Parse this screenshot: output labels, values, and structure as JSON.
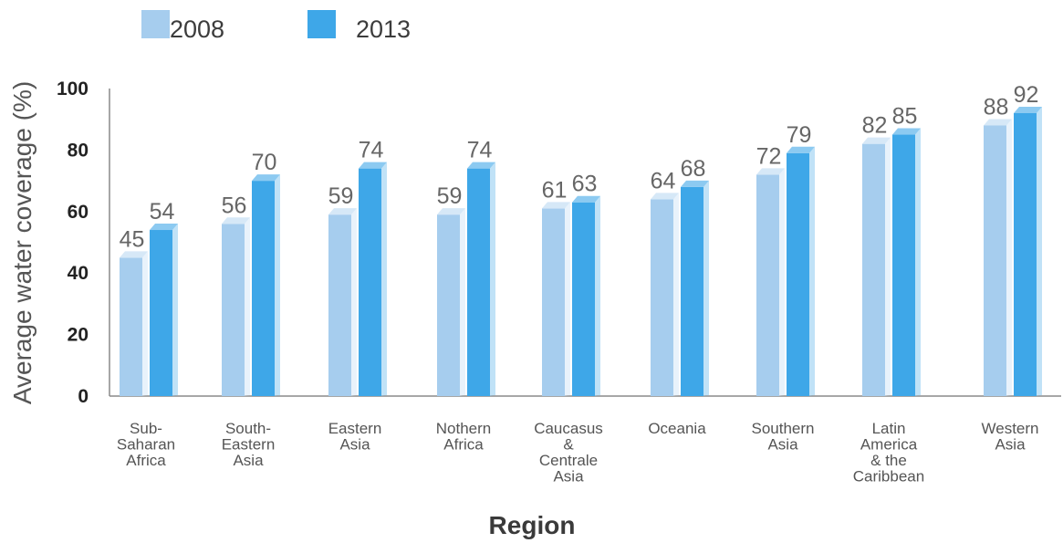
{
  "chart_data": {
    "type": "bar",
    "title": "",
    "xlabel": "Region",
    "ylabel": "Average water coverage (%)",
    "ylim": [
      0,
      100
    ],
    "yticks": [
      0,
      20,
      40,
      60,
      80,
      100
    ],
    "grid": false,
    "legend_position": "top-left",
    "categories": [
      "Sub-\nSaharan\nAfrica",
      "South-\nEastern\nAsia",
      "Eastern\nAsia",
      "Nothern\nAfrica",
      "Caucasus\n&\nCentrale\nAsia",
      "Oceania",
      "Southern\nAsia",
      "Latin\nAmerica\n& the\nCaribbean",
      "Western\nAsia"
    ],
    "series": [
      {
        "name": "2008",
        "color": "#a6cdee",
        "top_color": "#d6e8f7",
        "values": [
          45,
          56,
          59,
          59,
          61,
          64,
          72,
          82,
          88
        ]
      },
      {
        "name": "2013",
        "color": "#3ea7e8",
        "top_color": "#8ccaf1",
        "values": [
          54,
          70,
          74,
          74,
          63,
          68,
          79,
          85,
          92
        ]
      }
    ]
  }
}
